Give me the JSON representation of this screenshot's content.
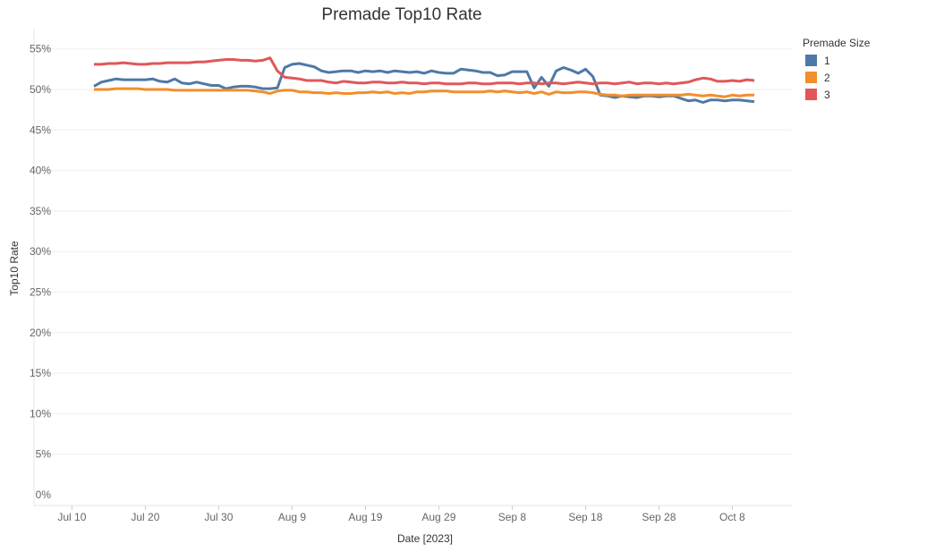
{
  "chart_data": {
    "type": "line",
    "title": "Premade Top10 Rate",
    "xlabel": "Date [2023]",
    "ylabel": "Top10 Rate",
    "x_start_date": "Jul 13, 2023",
    "x_step": "1 day",
    "x_ticks": [
      {
        "label": "Jul 10",
        "day": -3
      },
      {
        "label": "Jul 20",
        "day": 7
      },
      {
        "label": "Jul 30",
        "day": 17
      },
      {
        "label": "Aug 9",
        "day": 27
      },
      {
        "label": "Aug 19",
        "day": 37
      },
      {
        "label": "Aug 29",
        "day": 47
      },
      {
        "label": "Sep 8",
        "day": 57
      },
      {
        "label": "Sep 18",
        "day": 67
      },
      {
        "label": "Sep 28",
        "day": 77
      },
      {
        "label": "Oct 8",
        "day": 87
      }
    ],
    "y_ticks": [
      0,
      5,
      10,
      15,
      20,
      25,
      30,
      35,
      40,
      45,
      50,
      55
    ],
    "y_tick_labels": [
      "0%",
      "5%",
      "10%",
      "15%",
      "20%",
      "25%",
      "30%",
      "35%",
      "40%",
      "45%",
      "50%",
      "55%"
    ],
    "ylim": [
      0,
      56
    ],
    "grid": true,
    "legend": {
      "title": "Premade Size",
      "placement": "right"
    },
    "series": [
      {
        "name": "1",
        "color": "#4e79a7",
        "values": [
          50.4,
          50.9,
          51.1,
          51.3,
          51.2,
          51.2,
          51.2,
          51.2,
          51.3,
          51.0,
          50.9,
          51.3,
          50.8,
          50.7,
          50.9,
          50.7,
          50.5,
          50.5,
          50.1,
          50.3,
          50.4,
          50.4,
          50.3,
          50.1,
          50.1,
          50.2,
          52.7,
          53.1,
          53.2,
          53.0,
          52.8,
          52.3,
          52.1,
          52.2,
          52.3,
          52.3,
          52.1,
          52.3,
          52.2,
          52.3,
          52.1,
          52.3,
          52.2,
          52.1,
          52.2,
          52.0,
          52.3,
          52.1,
          52.0,
          52.0,
          52.5,
          52.4,
          52.3,
          52.1,
          52.1,
          51.7,
          51.8,
          52.2,
          52.2,
          52.2,
          50.2,
          51.5,
          50.4,
          52.3,
          52.7,
          52.4,
          52.0,
          52.5,
          51.6,
          49.3,
          49.2,
          49.0,
          49.2,
          49.1,
          49.0,
          49.2,
          49.2,
          49.1,
          49.2,
          49.2,
          48.9,
          48.6,
          48.7,
          48.4,
          48.7,
          48.7,
          48.6,
          48.7,
          48.7,
          48.6,
          48.5
        ]
      },
      {
        "name": "2",
        "color": "#f28e2b",
        "values": [
          50.0,
          50.0,
          50.0,
          50.1,
          50.1,
          50.1,
          50.1,
          50.0,
          50.0,
          50.0,
          50.0,
          49.9,
          49.9,
          49.9,
          49.9,
          49.9,
          49.9,
          49.9,
          49.9,
          49.9,
          49.9,
          49.9,
          49.8,
          49.7,
          49.5,
          49.8,
          49.9,
          49.9,
          49.7,
          49.7,
          49.6,
          49.6,
          49.5,
          49.6,
          49.5,
          49.5,
          49.6,
          49.6,
          49.7,
          49.6,
          49.7,
          49.5,
          49.6,
          49.5,
          49.7,
          49.7,
          49.8,
          49.8,
          49.8,
          49.7,
          49.7,
          49.7,
          49.7,
          49.7,
          49.8,
          49.7,
          49.8,
          49.7,
          49.6,
          49.7,
          49.5,
          49.7,
          49.4,
          49.7,
          49.6,
          49.6,
          49.7,
          49.7,
          49.6,
          49.4,
          49.3,
          49.3,
          49.2,
          49.3,
          49.3,
          49.3,
          49.3,
          49.3,
          49.3,
          49.3,
          49.3,
          49.4,
          49.3,
          49.2,
          49.3,
          49.2,
          49.1,
          49.3,
          49.2,
          49.3,
          49.3
        ]
      },
      {
        "name": "3",
        "color": "#e15759",
        "values": [
          53.1,
          53.1,
          53.2,
          53.2,
          53.3,
          53.2,
          53.1,
          53.1,
          53.2,
          53.2,
          53.3,
          53.3,
          53.3,
          53.3,
          53.4,
          53.4,
          53.5,
          53.6,
          53.7,
          53.7,
          53.6,
          53.6,
          53.5,
          53.6,
          53.9,
          52.3,
          51.5,
          51.4,
          51.3,
          51.1,
          51.1,
          51.1,
          50.9,
          50.8,
          51.0,
          50.9,
          50.8,
          50.8,
          50.9,
          50.9,
          50.8,
          50.8,
          50.9,
          50.8,
          50.8,
          50.7,
          50.8,
          50.8,
          50.7,
          50.7,
          50.7,
          50.8,
          50.8,
          50.7,
          50.7,
          50.8,
          50.8,
          50.8,
          50.7,
          50.8,
          50.8,
          50.7,
          50.8,
          50.8,
          50.7,
          50.8,
          50.9,
          50.8,
          50.7,
          50.8,
          50.8,
          50.7,
          50.8,
          50.9,
          50.7,
          50.8,
          50.8,
          50.7,
          50.8,
          50.7,
          50.8,
          50.9,
          51.2,
          51.4,
          51.3,
          51.0,
          51.0,
          51.1,
          51.0,
          51.2,
          51.1
        ]
      }
    ]
  }
}
